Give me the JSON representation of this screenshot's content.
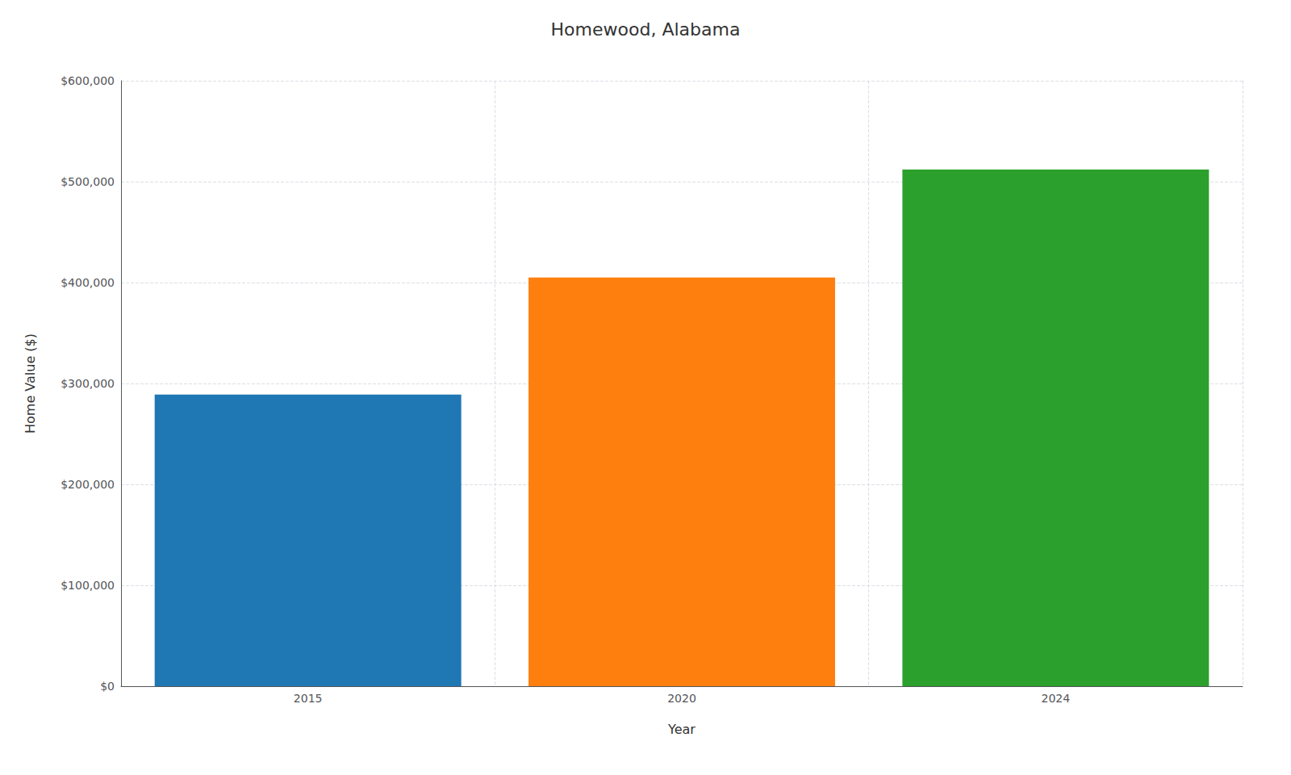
{
  "chart_data": {
    "type": "bar",
    "title": "Homewood, Alabama",
    "categories": [
      "2015",
      "2020",
      "2024"
    ],
    "values": [
      289000,
      405000,
      512000
    ],
    "colors": [
      "#1f77b4",
      "#ff7f0e",
      "#2ca02c"
    ],
    "xlabel": "Year",
    "ylabel": "Home Value ($)",
    "ylim": [
      0,
      600000
    ],
    "yticks": [
      {
        "value": 0,
        "label": "$0"
      },
      {
        "value": 100000,
        "label": "$100,000"
      },
      {
        "value": 200000,
        "label": "$200,000"
      },
      {
        "value": 300000,
        "label": "$300,000"
      },
      {
        "value": 400000,
        "label": "$400,000"
      },
      {
        "value": 500000,
        "label": "$500,000"
      },
      {
        "value": 600000,
        "label": "$600,000"
      }
    ],
    "grid": true
  }
}
